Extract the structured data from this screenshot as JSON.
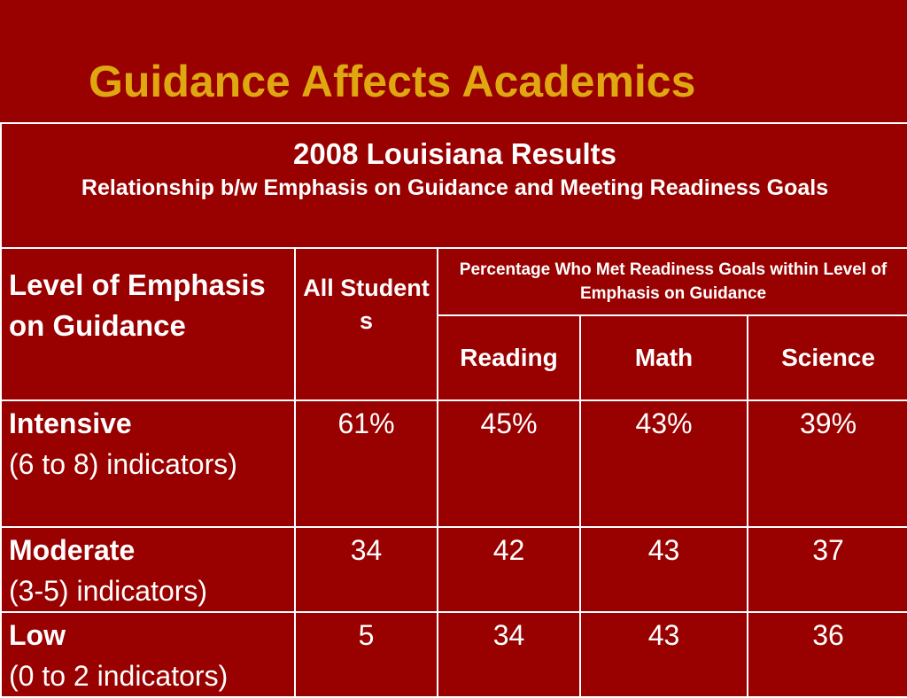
{
  "slide": {
    "title": "Guidance Affects Academics"
  },
  "table": {
    "header_title": "2008  Louisiana Results",
    "header_subtitle": "Relationship b/w Emphasis on Guidance and Meeting Readiness Goals",
    "level_header": "Level of Emphasis on Guidance",
    "all_students_header": "All Students",
    "percentage_header": "Percentage Who Met Readiness Goals within Level of Emphasis on Guidance",
    "subjects": [
      "Reading",
      "Math",
      "Science"
    ],
    "rows": [
      {
        "level": "Intensive",
        "detail": "(6 to 8) indicators)",
        "all_students": "61%",
        "reading": "45%",
        "math": "43%",
        "science": "39%"
      },
      {
        "level": "Moderate",
        "detail": "(3-5) indicators)",
        "all_students": "34",
        "reading": "42",
        "math": "43",
        "science": "37"
      },
      {
        "level": "Low",
        "detail": "(0 to 2 indicators)",
        "all_students": "5",
        "reading": "34",
        "math": "43",
        "science": "36"
      }
    ]
  }
}
